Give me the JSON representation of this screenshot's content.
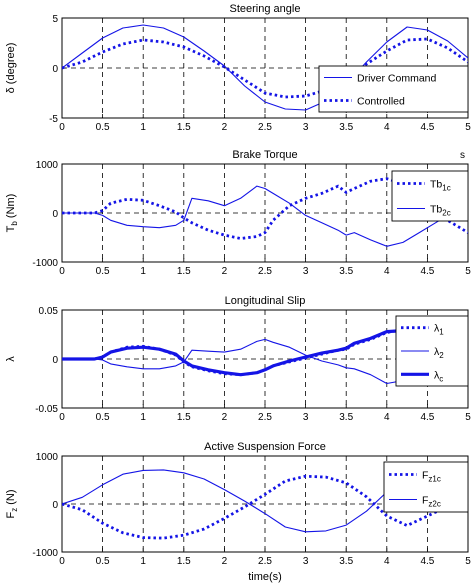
{
  "colors": {
    "series": "#1414e6",
    "axis": "#000000",
    "grid": "#000000"
  },
  "xlabel": "time(s)",
  "corner_mark": "s",
  "chart_data": [
    {
      "type": "line",
      "title": "Steering angle",
      "ylabel": "δ (degree)",
      "xlim": [
        0,
        5
      ],
      "ylim": [
        -5,
        5
      ],
      "xticks": [
        0,
        0.5,
        1,
        1.5,
        2,
        2.5,
        3,
        3.5,
        4,
        4.5,
        5
      ],
      "xtick_labels": [
        "0",
        "0.5",
        "1",
        "1.5",
        "2",
        "2.5",
        "3",
        "3.5",
        "4",
        "4.5",
        "5"
      ],
      "yticks": [
        -5,
        0,
        5
      ],
      "ytick_labels": [
        "-5",
        "0",
        "5"
      ],
      "series": [
        {
          "name": "Driver Command",
          "style": "thin",
          "x": [
            0,
            0.25,
            0.5,
            0.75,
            1,
            1.25,
            1.5,
            1.75,
            2,
            2.25,
            2.5,
            2.75,
            3,
            3.25,
            3.5,
            3.75,
            4,
            4.25,
            4.5,
            4.75,
            5
          ],
          "y": [
            0,
            1.5,
            3.0,
            4.0,
            4.3,
            4.0,
            3.1,
            1.7,
            0.2,
            -1.8,
            -3.4,
            -4.1,
            -4.2,
            -3.3,
            -1.6,
            0.6,
            2.6,
            4.1,
            3.8,
            2.7,
            1.0
          ]
        },
        {
          "name": "Controlled",
          "style": "dotted",
          "x": [
            0,
            0.25,
            0.5,
            0.75,
            1,
            1.25,
            1.5,
            1.75,
            2,
            2.25,
            2.5,
            2.75,
            3,
            3.25,
            3.5,
            3.75,
            4,
            4.25,
            4.5,
            4.75,
            5
          ],
          "y": [
            0,
            0.6,
            1.6,
            2.4,
            2.8,
            2.6,
            2.1,
            1.2,
            0.1,
            -1.2,
            -2.5,
            -2.9,
            -2.8,
            -2.2,
            -1.1,
            0.4,
            1.7,
            2.8,
            2.9,
            2.0,
            0.6
          ]
        }
      ],
      "legend": "bottom-right"
    },
    {
      "type": "line",
      "title": "Brake Torque",
      "ylabel": "T",
      "ylabel_sub": "b",
      "ylabel_unit": " (Nm)",
      "xlim": [
        0,
        5
      ],
      "ylim": [
        -1000,
        1000
      ],
      "xticks": [
        0,
        0.5,
        1,
        1.5,
        2,
        2.5,
        3,
        3.5,
        4,
        4.5,
        5
      ],
      "xtick_labels": [
        "0",
        "0.5",
        "1",
        "1.5",
        "2",
        "2.5",
        "3",
        "3.5",
        "4",
        "4.5",
        "5"
      ],
      "yticks": [
        -1000,
        0,
        1000
      ],
      "ytick_labels": [
        "-1000",
        "0",
        "1000"
      ],
      "series": [
        {
          "name": "Tb",
          "sub": "1c",
          "style": "dotted",
          "x": [
            0,
            0.4,
            0.5,
            0.6,
            0.8,
            1.0,
            1.2,
            1.4,
            1.5,
            1.6,
            1.8,
            2.0,
            2.2,
            2.4,
            2.5,
            2.6,
            2.8,
            3.0,
            3.2,
            3.4,
            3.5,
            3.6,
            3.8,
            4.0,
            4.2,
            4.4,
            4.6,
            4.8,
            5
          ],
          "y": [
            0,
            0,
            50,
            200,
            280,
            260,
            150,
            20,
            -100,
            -200,
            -350,
            -450,
            -520,
            -480,
            -400,
            -150,
            150,
            300,
            400,
            550,
            420,
            500,
            650,
            700,
            600,
            300,
            0,
            -200,
            -400
          ]
        },
        {
          "name": "Tb",
          "sub": "2c",
          "style": "thin",
          "x": [
            0,
            0.4,
            0.5,
            0.6,
            0.8,
            1.0,
            1.2,
            1.4,
            1.5,
            1.6,
            1.8,
            2.0,
            2.2,
            2.4,
            2.5,
            2.6,
            2.8,
            3.0,
            3.2,
            3.4,
            3.5,
            3.6,
            3.8,
            4.0,
            4.2,
            4.4,
            4.6,
            4.8,
            5
          ],
          "y": [
            0,
            0,
            -50,
            -150,
            -250,
            -280,
            -300,
            -250,
            -150,
            300,
            250,
            150,
            300,
            550,
            500,
            400,
            200,
            -50,
            -200,
            -350,
            -450,
            -400,
            -550,
            -680,
            -600,
            -400,
            -200,
            0,
            150
          ]
        }
      ],
      "legend": "top-right"
    },
    {
      "type": "line",
      "title": "Longitudinal Slip",
      "ylabel": "λ",
      "xlim": [
        0,
        5
      ],
      "ylim": [
        -0.05,
        0.05
      ],
      "xticks": [
        0,
        0.5,
        1,
        1.5,
        2,
        2.5,
        3,
        3.5,
        4,
        4.5,
        5
      ],
      "xtick_labels": [
        "0",
        "0.5",
        "1",
        "1.5",
        "2",
        "2.5",
        "3",
        "3.5",
        "4",
        "4.5",
        "5"
      ],
      "yticks": [
        -0.05,
        0,
        0.05
      ],
      "ytick_labels": [
        "-0.05",
        "0",
        "0.05"
      ],
      "series": [
        {
          "name": "λ",
          "sub": "1",
          "style": "dotted",
          "x": [
            0,
            0.4,
            0.5,
            0.6,
            0.8,
            1.0,
            1.2,
            1.4,
            1.5,
            1.6,
            1.8,
            2.0,
            2.2,
            2.4,
            2.5,
            2.6,
            2.8,
            3.0,
            3.2,
            3.4,
            3.5,
            3.6,
            3.8,
            4.0,
            4.2,
            4.4,
            4.6,
            4.8,
            5
          ],
          "y": [
            0,
            0,
            0.002,
            0.007,
            0.012,
            0.013,
            0.01,
            0.004,
            -0.003,
            -0.008,
            -0.012,
            -0.015,
            -0.016,
            -0.014,
            -0.011,
            -0.007,
            -0.003,
            0.001,
            0.005,
            0.009,
            0.01,
            0.015,
            0.02,
            0.027,
            0.03,
            0.026,
            0.018,
            0.008,
            0
          ]
        },
        {
          "name": "λ",
          "sub": "2",
          "style": "thin",
          "x": [
            0,
            0.4,
            0.5,
            0.6,
            0.8,
            1.0,
            1.2,
            1.4,
            1.5,
            1.6,
            1.8,
            2.0,
            2.2,
            2.4,
            2.5,
            2.6,
            2.8,
            3.0,
            3.2,
            3.4,
            3.5,
            3.6,
            3.8,
            4.0,
            4.2,
            4.4,
            4.6,
            4.8,
            5
          ],
          "y": [
            0,
            0,
            -0.001,
            -0.005,
            -0.008,
            -0.01,
            -0.01,
            -0.007,
            -0.003,
            0.009,
            0.008,
            0.007,
            0.01,
            0.018,
            0.02,
            0.017,
            0.012,
            0.004,
            -0.002,
            -0.006,
            -0.009,
            -0.01,
            -0.016,
            -0.025,
            -0.022,
            -0.012,
            -0.003,
            0.003,
            0.006
          ]
        },
        {
          "name": "λ",
          "sub": "c",
          "style": "thick",
          "x": [
            0,
            0.4,
            0.5,
            0.6,
            0.8,
            1.0,
            1.2,
            1.4,
            1.5,
            1.6,
            1.8,
            2.0,
            2.2,
            2.4,
            2.5,
            2.6,
            2.8,
            3.0,
            3.2,
            3.4,
            3.5,
            3.6,
            3.8,
            4.0,
            4.2,
            4.4,
            4.6,
            4.8,
            5
          ],
          "y": [
            0,
            0,
            0.002,
            0.007,
            0.011,
            0.012,
            0.01,
            0.005,
            -0.002,
            -0.007,
            -0.011,
            -0.014,
            -0.016,
            -0.014,
            -0.011,
            -0.007,
            -0.002,
            0.002,
            0.006,
            0.009,
            0.011,
            0.016,
            0.021,
            0.028,
            0.029,
            0.025,
            0.017,
            0.008,
            0.001
          ]
        }
      ],
      "legend": "top-right"
    },
    {
      "type": "line",
      "title": "Active Suspension Force",
      "ylabel": "F",
      "ylabel_sub": "z",
      "ylabel_unit": " (N)",
      "xlim": [
        0,
        5
      ],
      "ylim": [
        -1000,
        1000
      ],
      "xticks": [
        0,
        0.5,
        1,
        1.5,
        2,
        2.5,
        3,
        3.5,
        4,
        4.5,
        5
      ],
      "xtick_labels": [
        "0",
        "0.5",
        "1",
        "1.5",
        "2",
        "2.5",
        "3",
        "3.5",
        "4",
        "4.5",
        "5"
      ],
      "yticks": [
        -1000,
        0,
        1000
      ],
      "ytick_labels": [
        "-1000",
        "0",
        "1000"
      ],
      "series": [
        {
          "name": "F",
          "sub": "z1c",
          "style": "dotted",
          "x": [
            0,
            0.25,
            0.5,
            0.75,
            1,
            1.25,
            1.5,
            1.75,
            2,
            2.25,
            2.5,
            2.75,
            3,
            3.25,
            3.5,
            3.75,
            4,
            4.25,
            4.5,
            4.75,
            5
          ],
          "y": [
            0,
            -120,
            -400,
            -600,
            -700,
            -710,
            -650,
            -520,
            -300,
            -60,
            200,
            480,
            580,
            560,
            440,
            150,
            -250,
            -450,
            -250,
            -50,
            0
          ]
        },
        {
          "name": "F",
          "sub": "z2c",
          "style": "thin",
          "x": [
            0,
            0.25,
            0.5,
            0.75,
            1,
            1.25,
            1.5,
            1.75,
            2,
            2.25,
            2.5,
            2.75,
            3,
            3.25,
            3.5,
            3.75,
            4,
            4.25,
            4.5,
            4.75,
            5
          ],
          "y": [
            0,
            140,
            400,
            620,
            700,
            710,
            650,
            520,
            300,
            60,
            -200,
            -480,
            -580,
            -560,
            -440,
            -150,
            250,
            450,
            250,
            50,
            0
          ]
        }
      ],
      "legend": "top-right"
    }
  ]
}
